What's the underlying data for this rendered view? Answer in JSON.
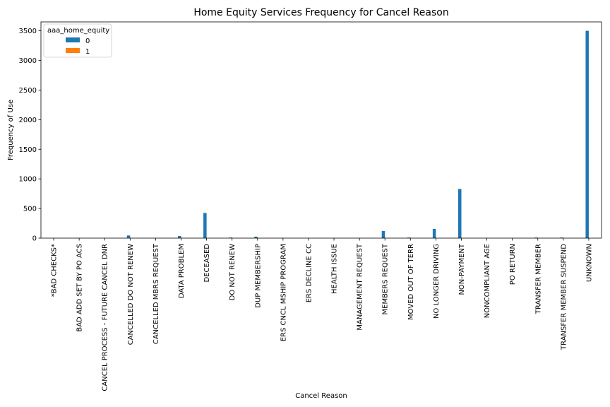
{
  "chart_data": {
    "type": "bar",
    "title": "Home Equity Services Frequency for Cancel Reason",
    "xlabel": "Cancel Reason",
    "ylabel": "Frequency of Use",
    "ylim": [
      0,
      3650
    ],
    "yticks": [
      0,
      500,
      1000,
      1500,
      2000,
      2500,
      3000,
      3500
    ],
    "grid": false,
    "legend": {
      "title": "aaa_home_equity",
      "placement": "top-left"
    },
    "categories": [
      "*BAD CHECKS*",
      "BAD ADD SET BY PO ACS",
      "CANCEL PROCESS - FUTURE CANCEL DNR",
      "CANCELLED DO NOT RENEW",
      "CANCELLED MBRS REQUEST",
      "DATA PROBLEM",
      "DECEASED",
      "DO NOT RENEW",
      "DUP MEMBERSHIP",
      "ERS CNCL MSHIP PROGRAM",
      "ERS DECLINE CC",
      "HEALTH ISSUE",
      "MANAGEMENT REQUEST",
      "MEMBERS REQUEST",
      "MOVED OUT OF TERR",
      "NO LONGER DRIVING",
      "NON-PAYMENT",
      "NONCOMPLIANT AGE",
      "PO RETURN",
      "TRANSFER MEMBER",
      "TRANSFER MEMBER SUSPEND",
      "UNKNOWN"
    ],
    "series": [
      {
        "name": "0",
        "color": "#1f77b4",
        "values": [
          1,
          2,
          2,
          45,
          2,
          35,
          425,
          10,
          25,
          2,
          2,
          2,
          2,
          120,
          10,
          155,
          830,
          2,
          2,
          10,
          10,
          3500
        ]
      },
      {
        "name": "1",
        "color": "#ff7f0e",
        "values": [
          0,
          0,
          0,
          0,
          0,
          0,
          0,
          0,
          0,
          0,
          0,
          0,
          0,
          0,
          0,
          0,
          0,
          0,
          0,
          0,
          0,
          0
        ]
      }
    ]
  }
}
